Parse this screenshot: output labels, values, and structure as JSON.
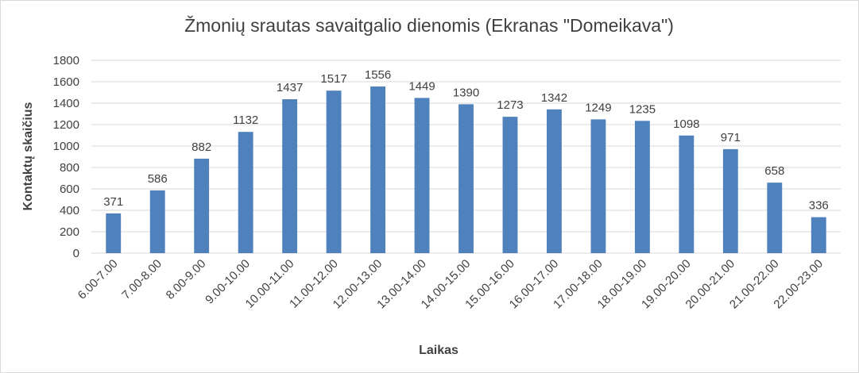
{
  "chart_data": {
    "type": "bar",
    "title": "Žmonių srautas savaitgalio dienomis (Ekranas \"Domeikava\")",
    "x_label": "Laikas",
    "y_label": "Kontaktų skaičius",
    "categories": [
      "6.00-7.00",
      "7.00-8.00",
      "8.00-9.00",
      "9.00-10.00",
      "10.00-11.00",
      "11.00-12.00",
      "12.00-13.00",
      "13.00-14.00",
      "14.00-15.00",
      "15.00-16.00",
      "16.00-17.00",
      "17.00-18.00",
      "18.00-19.00",
      "19.00-20.00",
      "20.00-21.00",
      "21.00-22.00",
      "22.00-23.00"
    ],
    "values": [
      371,
      586,
      882,
      1132,
      1437,
      1517,
      1556,
      1449,
      1390,
      1273,
      1342,
      1249,
      1235,
      1098,
      971,
      658,
      336
    ],
    "color": "#4f81bd",
    "ylim": [
      0,
      1800
    ],
    "yticks": [
      0,
      200,
      400,
      600,
      800,
      1000,
      1200,
      1400,
      1600,
      1800
    ],
    "grid": true
  }
}
